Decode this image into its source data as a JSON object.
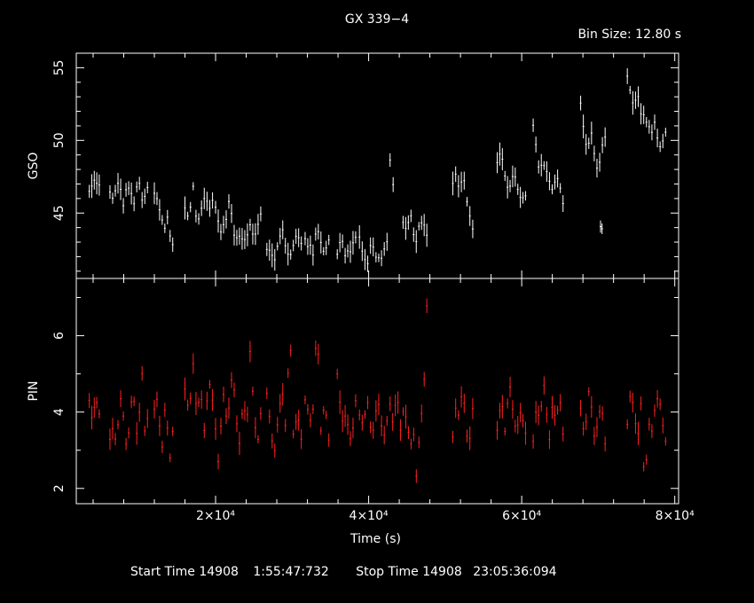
{
  "header": {
    "title": "GX 339−4",
    "bin_size": "Bin Size: 12.80 s"
  },
  "footer": {
    "start_label": "Start Time 14908",
    "start_time": "1:55:47:732",
    "stop_label": "Stop Time 14908",
    "stop_time": "23:05:36:094"
  },
  "colors": {
    "gso": "#ffffff",
    "pin": "#ff2020",
    "axes": "#ffffff",
    "background": "#000000"
  },
  "chart_data": [
    {
      "type": "scatter",
      "panel": "top",
      "ylabel": "GSO",
      "xlim": [
        1800,
        80500
      ],
      "ylim": [
        40.5,
        56
      ],
      "yticks": [
        45,
        50,
        55
      ],
      "x_tick_labels_shown": false,
      "series": [
        {
          "errorbars": true,
          "segments": [
            {
              "x0": 3500,
              "x1": 4800,
              "y": [
                46.4,
                46.9,
                47.4,
                46.8
              ]
            },
            {
              "x0": 6200,
              "x1": 11100,
              "y": [
                46.3,
                45.8,
                46.6,
                47.4,
                46.0,
                45.6,
                47.1,
                46.6,
                45.4,
                46.2,
                47.6,
                46.0,
                45.8,
                46.6
              ]
            },
            {
              "x0": 12000,
              "x1": 14400,
              "y": [
                46.4,
                45.8,
                45.2,
                44.4,
                43.9,
                44.6,
                43.3,
                42.9
              ]
            },
            {
              "x0": 16000,
              "x1": 19600,
              "y": [
                45.4,
                44.6,
                47.0,
                44.4,
                44.9,
                46.1,
                45.5,
                45.9
              ]
            },
            {
              "x0": 20000,
              "x1": 25900,
              "y": [
                45.3,
                44.2,
                43.6,
                44.8,
                45.9,
                44.0,
                42.9,
                43.7,
                42.8,
                43.6,
                44.5,
                43.2,
                44.2,
                45.0
              ]
            },
            {
              "x0": 26700,
              "x1": 31200,
              "y": [
                42.8,
                42.1,
                41.6,
                43.2,
                44.0,
                42.4,
                41.8,
                42.8,
                43.6,
                43.0
              ]
            },
            {
              "x0": 31700,
              "x1": 34800,
              "y": [
                43.4,
                42.7,
                42.1,
                44.0,
                43.2,
                42.1,
                43.4
              ]
            },
            {
              "x0": 35900,
              "x1": 38300,
              "y": [
                42.4,
                43.1,
                41.9,
                42.7,
                43.5
              ]
            },
            {
              "x0": 38800,
              "x1": 42400,
              "y": [
                43.3,
                42.2,
                41.5,
                42.9,
                42.2,
                41.7,
                42.4,
                42.9
              ]
            },
            {
              "x0": 42800,
              "x1": 43200,
              "y": [
                48.6,
                47.0
              ]
            },
            {
              "x0": 44500,
              "x1": 47600,
              "y": [
                44.3,
                43.5,
                44.9,
                43.9,
                43.0,
                44.2,
                44.6,
                43.6
              ]
            },
            {
              "x0": 51000,
              "x1": 53600,
              "y": [
                46.9,
                47.6,
                46.4,
                47.9,
                46.2,
                44.6,
                44.2
              ]
            },
            {
              "x0": 56800,
              "x1": 60500,
              "y": [
                48.6,
                49.1,
                47.6,
                46.4,
                47.9,
                46.6,
                45.6,
                46.4
              ]
            },
            {
              "x0": 61500,
              "x1": 65400,
              "y": [
                51.2,
                49.4,
                47.9,
                48.6,
                48.1,
                47.1,
                46.4,
                47.4,
                47.1,
                45.6
              ]
            },
            {
              "x0": 67700,
              "x1": 70900,
              "y": [
                52.4,
                51.1,
                49.1,
                50.4,
                50.4,
                47.6,
                48.2,
                49.6,
                50.1
              ]
            },
            {
              "x0": 70300,
              "x1": 70500,
              "y": [
                44.2
              ]
            },
            {
              "x0": 73800,
              "x1": 78800,
              "y": [
                54.2,
                53.4,
                52.4,
                52.9,
                51.6,
                51.4,
                50.9,
                50.4,
                51.1,
                50.1,
                49.4,
                50.6
              ]
            }
          ]
        }
      ]
    },
    {
      "type": "scatter",
      "panel": "bottom",
      "xlabel": "Time (s)",
      "ylabel": "PIN",
      "xlim": [
        1800,
        80500
      ],
      "ylim": [
        1.6,
        7.5
      ],
      "yticks": [
        2,
        4,
        6
      ],
      "xticks": [
        20000,
        40000,
        60000,
        80000
      ],
      "xtick_labels": [
        "2×10⁴",
        "4×10⁴",
        "6×10⁴",
        "8×10⁴"
      ],
      "series": [
        {
          "errorbars": true,
          "segments": [
            {
              "x0": 3500,
              "x1": 4800,
              "y": [
                4.2,
                3.7,
                4.4,
                3.9
              ]
            },
            {
              "x0": 6200,
              "x1": 11100,
              "y": [
                3.4,
                3.6,
                3.2,
                3.9,
                4.5,
                3.5,
                3.0,
                4.1,
                4.7,
                3.3,
                3.8,
                5.2,
                3.6,
                3.9
              ]
            },
            {
              "x0": 12000,
              "x1": 14400,
              "y": [
                4.0,
                4.4,
                3.7,
                3.2,
                4.1,
                3.6,
                2.9,
                3.4
              ]
            },
            {
              "x0": 16000,
              "x1": 19600,
              "y": [
                4.6,
                3.9,
                5.3,
                4.0,
                4.6,
                3.4,
                4.9,
                4.3
              ]
            },
            {
              "x0": 20000,
              "x1": 25900,
              "y": [
                3.5,
                2.5,
                4.8,
                3.8,
                4.2,
                5.1,
                3.7,
                3.0,
                4.3,
                3.6,
                5.8,
                4.1,
                3.2,
                3.9
              ]
            },
            {
              "x0": 26700,
              "x1": 31200,
              "y": [
                4.4,
                3.5,
                3.0,
                3.8,
                4.6,
                3.4,
                6.3,
                3.2,
                3.9,
                3.3
              ]
            },
            {
              "x0": 31700,
              "x1": 34800,
              "y": [
                4.3,
                3.8,
                4.1,
                6.5,
                3.5,
                4.2,
                3.3
              ]
            },
            {
              "x0": 35900,
              "x1": 38300,
              "y": [
                5.1,
                3.7,
                4.0,
                3.2,
                4.2
              ]
            },
            {
              "x0": 38800,
              "x1": 42400,
              "y": [
                3.9,
                3.6,
                4.4,
                3.3,
                3.9,
                4.2,
                3.4,
                3.7
              ]
            },
            {
              "x0": 42800,
              "x1": 47600,
              "y": [
                4.2,
                3.5,
                4.8,
                3.4,
                4.0,
                3.7,
                3.1,
                3.6,
                2.0,
                3.8,
                4.3,
                6.8
              ]
            },
            {
              "x0": 51000,
              "x1": 53600,
              "y": [
                3.4,
                4.1,
                3.9,
                4.7,
                3.6,
                3.2,
                4.0
              ]
            },
            {
              "x0": 56800,
              "x1": 60500,
              "y": [
                3.6,
                4.3,
                3.3,
                4.8,
                3.8,
                3.5,
                4.1,
                3.4
              ]
            },
            {
              "x0": 61500,
              "x1": 65400,
              "y": [
                3.2,
                4.2,
                3.6,
                4.8,
                4.0,
                3.3,
                4.3,
                3.7,
                4.5,
                3.4
              ]
            },
            {
              "x0": 67700,
              "x1": 70900,
              "y": [
                4.2,
                3.5,
                3.9,
                4.7,
                3.6,
                3.3,
                3.9,
                4.1,
                3.2
              ]
            },
            {
              "x0": 73800,
              "x1": 78800,
              "y": [
                3.6,
                4.5,
                3.9,
                3.3,
                4.2,
                2.0,
                3.7,
                3.4,
                4.1,
                4.4,
                3.7,
                3.3
              ]
            }
          ]
        }
      ]
    }
  ]
}
